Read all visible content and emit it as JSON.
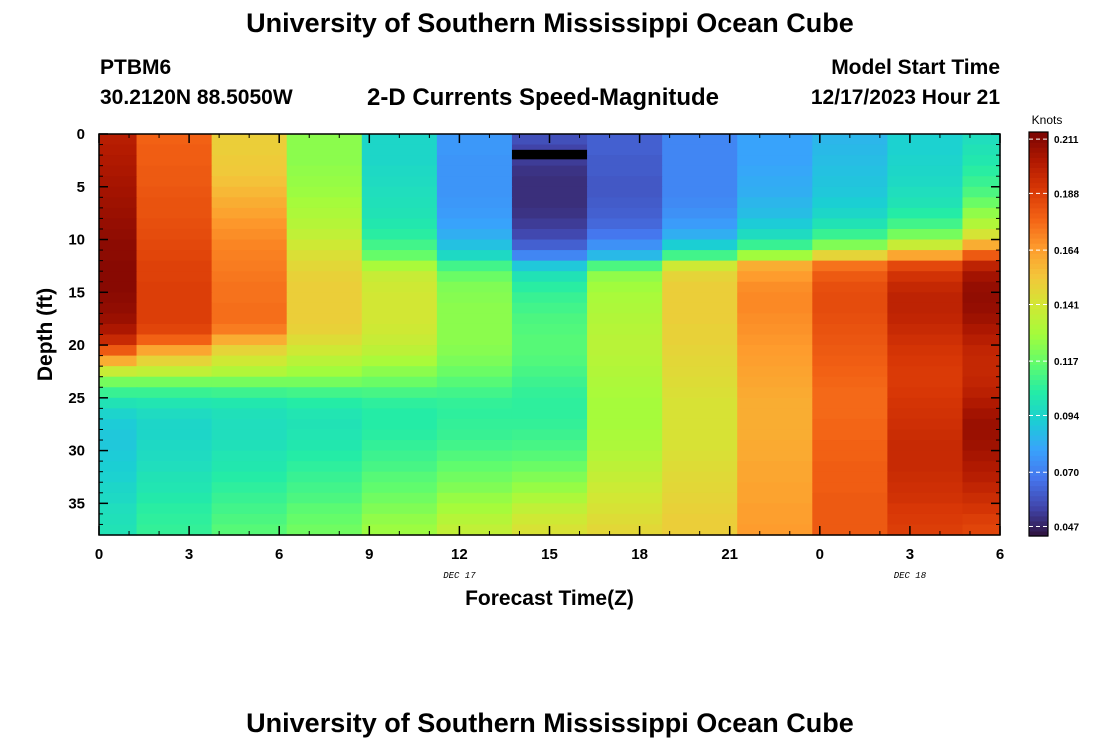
{
  "header": {
    "title": "University of Southern Mississippi Ocean Cube",
    "station": "PTBM6",
    "coords": "30.2120N  88.5050W",
    "subtitle": "2-D Currents Speed-Magnitude",
    "start_label": "Model Start Time",
    "start_value": "12/17/2023 Hour 21"
  },
  "footer": {
    "title": "University of Southern Mississippi Ocean Cube"
  },
  "chart_data": {
    "type": "heatmap",
    "title": "2-D Currents Speed-Magnitude",
    "xlabel": "Forecast Time(Z)",
    "ylabel": "Depth (ft)",
    "x_hours": [
      0,
      3,
      6,
      9,
      12,
      15,
      18,
      21,
      24,
      27,
      30
    ],
    "x_tick_labels": [
      "0",
      "3",
      "6",
      "9",
      "12",
      "15",
      "18",
      "21",
      "0",
      "3",
      "6"
    ],
    "date_labels": [
      {
        "hour": 12,
        "text": "DEC 17"
      },
      {
        "hour": 27,
        "text": "DEC 18"
      }
    ],
    "xlim": [
      0,
      30
    ],
    "ylim": [
      0,
      38
    ],
    "y_ticks": [
      0,
      5,
      10,
      15,
      20,
      25,
      30,
      35
    ],
    "column_centers_hours": [
      0,
      2.5,
      5,
      7.5,
      10,
      12.5,
      15,
      17.5,
      20,
      22.5,
      25,
      27.5,
      30
    ],
    "depth_bins_ft": [
      0,
      1,
      2,
      3,
      4,
      5,
      6,
      7,
      8,
      9,
      10,
      11,
      12,
      13,
      14,
      15,
      16,
      17,
      18,
      19,
      20,
      21,
      22,
      23,
      24,
      25,
      26,
      27,
      28,
      29,
      30,
      31,
      32,
      33,
      34,
      35,
      36,
      37
    ],
    "speed_knots": [
      [
        0.2,
        0.178,
        0.15,
        0.124,
        0.095,
        0.077,
        0.058,
        0.062,
        0.072,
        0.08,
        0.085,
        0.093,
        0.098
      ],
      [
        0.201,
        0.179,
        0.15,
        0.124,
        0.095,
        0.077,
        0.055,
        0.062,
        0.072,
        0.08,
        0.086,
        0.093,
        0.1
      ],
      [
        0.202,
        0.179,
        0.151,
        0.124,
        0.095,
        0.076,
        0.053,
        0.061,
        0.072,
        0.08,
        0.087,
        0.094,
        0.102
      ],
      [
        0.203,
        0.18,
        0.152,
        0.125,
        0.096,
        0.076,
        0.051,
        0.061,
        0.072,
        0.081,
        0.088,
        0.095,
        0.105
      ],
      [
        0.204,
        0.18,
        0.154,
        0.126,
        0.097,
        0.076,
        0.05,
        0.06,
        0.072,
        0.082,
        0.089,
        0.096,
        0.108
      ],
      [
        0.205,
        0.181,
        0.157,
        0.127,
        0.098,
        0.076,
        0.05,
        0.06,
        0.072,
        0.083,
        0.09,
        0.098,
        0.112
      ],
      [
        0.206,
        0.182,
        0.16,
        0.129,
        0.099,
        0.077,
        0.05,
        0.061,
        0.073,
        0.085,
        0.092,
        0.1,
        0.118
      ],
      [
        0.207,
        0.182,
        0.163,
        0.131,
        0.1,
        0.078,
        0.051,
        0.062,
        0.075,
        0.087,
        0.095,
        0.104,
        0.125
      ],
      [
        0.208,
        0.183,
        0.166,
        0.133,
        0.102,
        0.08,
        0.053,
        0.064,
        0.078,
        0.091,
        0.1,
        0.11,
        0.132
      ],
      [
        0.209,
        0.184,
        0.168,
        0.136,
        0.105,
        0.083,
        0.056,
        0.068,
        0.083,
        0.097,
        0.108,
        0.12,
        0.142
      ],
      [
        0.21,
        0.185,
        0.17,
        0.14,
        0.11,
        0.088,
        0.062,
        0.075,
        0.092,
        0.108,
        0.122,
        0.138,
        0.16
      ],
      [
        0.21,
        0.186,
        0.171,
        0.144,
        0.117,
        0.096,
        0.072,
        0.086,
        0.11,
        0.128,
        0.148,
        0.162,
        0.18
      ],
      [
        0.211,
        0.187,
        0.172,
        0.147,
        0.13,
        0.11,
        0.09,
        0.112,
        0.14,
        0.16,
        0.174,
        0.185,
        0.198
      ],
      [
        0.211,
        0.187,
        0.173,
        0.149,
        0.138,
        0.118,
        0.1,
        0.125,
        0.148,
        0.165,
        0.18,
        0.192,
        0.205
      ],
      [
        0.211,
        0.188,
        0.174,
        0.15,
        0.14,
        0.122,
        0.105,
        0.128,
        0.15,
        0.168,
        0.183,
        0.196,
        0.208
      ],
      [
        0.21,
        0.188,
        0.174,
        0.15,
        0.141,
        0.123,
        0.108,
        0.13,
        0.15,
        0.169,
        0.184,
        0.198,
        0.209
      ],
      [
        0.209,
        0.188,
        0.175,
        0.15,
        0.141,
        0.124,
        0.11,
        0.131,
        0.15,
        0.169,
        0.184,
        0.198,
        0.208
      ],
      [
        0.207,
        0.188,
        0.175,
        0.15,
        0.141,
        0.124,
        0.112,
        0.132,
        0.15,
        0.168,
        0.183,
        0.197,
        0.206
      ],
      [
        0.203,
        0.186,
        0.172,
        0.149,
        0.14,
        0.124,
        0.113,
        0.133,
        0.149,
        0.167,
        0.182,
        0.195,
        0.203
      ],
      [
        0.195,
        0.178,
        0.16,
        0.145,
        0.138,
        0.124,
        0.114,
        0.134,
        0.149,
        0.166,
        0.181,
        0.193,
        0.2
      ],
      [
        0.18,
        0.162,
        0.148,
        0.14,
        0.135,
        0.123,
        0.114,
        0.134,
        0.148,
        0.165,
        0.18,
        0.191,
        0.197
      ],
      [
        0.16,
        0.148,
        0.14,
        0.134,
        0.13,
        0.121,
        0.113,
        0.133,
        0.147,
        0.164,
        0.179,
        0.19,
        0.196
      ],
      [
        0.138,
        0.136,
        0.132,
        0.128,
        0.124,
        0.118,
        0.111,
        0.132,
        0.146,
        0.163,
        0.178,
        0.189,
        0.196
      ],
      [
        0.12,
        0.12,
        0.12,
        0.12,
        0.118,
        0.114,
        0.109,
        0.131,
        0.145,
        0.162,
        0.177,
        0.189,
        0.197
      ],
      [
        0.108,
        0.108,
        0.109,
        0.11,
        0.111,
        0.11,
        0.107,
        0.13,
        0.144,
        0.161,
        0.176,
        0.19,
        0.199
      ],
      [
        0.1,
        0.101,
        0.102,
        0.104,
        0.106,
        0.107,
        0.106,
        0.129,
        0.143,
        0.16,
        0.176,
        0.191,
        0.202
      ],
      [
        0.094,
        0.097,
        0.099,
        0.101,
        0.104,
        0.106,
        0.106,
        0.129,
        0.143,
        0.16,
        0.176,
        0.192,
        0.205
      ],
      [
        0.091,
        0.095,
        0.098,
        0.1,
        0.104,
        0.107,
        0.107,
        0.129,
        0.143,
        0.16,
        0.177,
        0.193,
        0.207
      ],
      [
        0.09,
        0.095,
        0.098,
        0.101,
        0.105,
        0.108,
        0.109,
        0.13,
        0.143,
        0.16,
        0.177,
        0.194,
        0.207
      ],
      [
        0.09,
        0.096,
        0.099,
        0.102,
        0.107,
        0.11,
        0.111,
        0.131,
        0.143,
        0.161,
        0.178,
        0.195,
        0.206
      ],
      [
        0.091,
        0.097,
        0.101,
        0.104,
        0.109,
        0.113,
        0.114,
        0.133,
        0.144,
        0.161,
        0.178,
        0.195,
        0.204
      ],
      [
        0.092,
        0.098,
        0.102,
        0.106,
        0.111,
        0.116,
        0.118,
        0.135,
        0.145,
        0.162,
        0.179,
        0.195,
        0.202
      ],
      [
        0.093,
        0.1,
        0.104,
        0.108,
        0.114,
        0.119,
        0.122,
        0.137,
        0.146,
        0.162,
        0.179,
        0.194,
        0.2
      ],
      [
        0.095,
        0.101,
        0.106,
        0.11,
        0.116,
        0.122,
        0.126,
        0.139,
        0.147,
        0.163,
        0.179,
        0.193,
        0.197
      ],
      [
        0.096,
        0.103,
        0.108,
        0.112,
        0.119,
        0.126,
        0.131,
        0.141,
        0.148,
        0.163,
        0.18,
        0.192,
        0.194
      ],
      [
        0.098,
        0.105,
        0.11,
        0.115,
        0.122,
        0.129,
        0.136,
        0.143,
        0.149,
        0.164,
        0.18,
        0.19,
        0.191
      ],
      [
        0.099,
        0.106,
        0.112,
        0.117,
        0.125,
        0.133,
        0.14,
        0.145,
        0.15,
        0.164,
        0.18,
        0.189,
        0.188
      ],
      [
        0.1,
        0.107,
        0.114,
        0.119,
        0.127,
        0.136,
        0.143,
        0.147,
        0.15,
        0.165,
        0.18,
        0.188,
        0.186
      ]
    ],
    "masked_segment": {
      "depth_ft": [
        1.5,
        2.4
      ],
      "hours": [
        13.75,
        16.25
      ]
    },
    "colorbar": {
      "label": "Knots",
      "min": 0.043,
      "max": 0.214,
      "tick_values": [
        0.047,
        0.07,
        0.094,
        0.117,
        0.141,
        0.164,
        0.188,
        0.211
      ],
      "tick_labels": [
        "0.047",
        "0.070",
        "0.094",
        "0.117",
        "0.141",
        "0.164",
        "0.188",
        "0.211"
      ],
      "colors": [
        "#30123b",
        "#4145ab",
        "#4675ed",
        "#39a2fc",
        "#1bcfd4",
        "#24eca6",
        "#61fc6c",
        "#a4fc3b",
        "#d1e834",
        "#f3c63a",
        "#fe9b2d",
        "#f36315",
        "#d93806",
        "#b11901",
        "#7a0402"
      ]
    },
    "mask_color": "#000000"
  }
}
